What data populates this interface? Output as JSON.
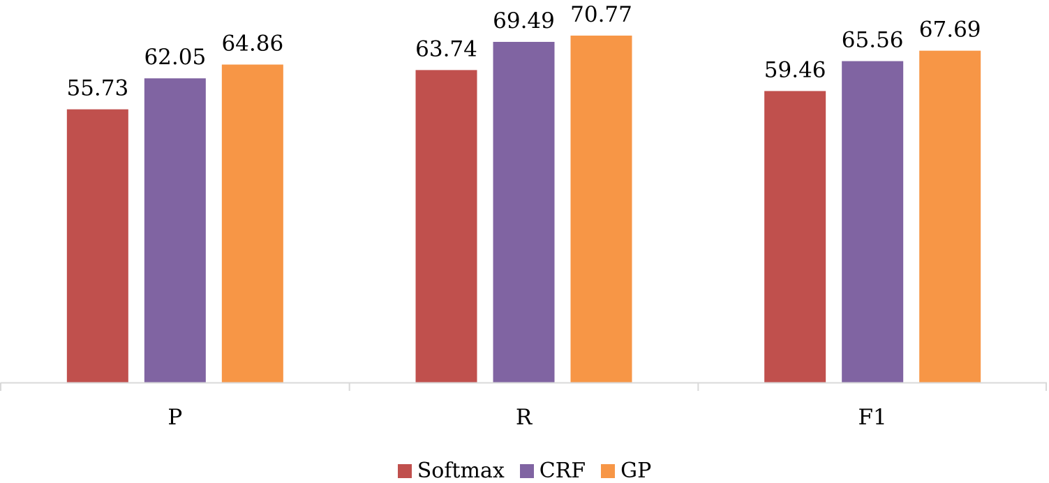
{
  "chart_data": {
    "type": "bar",
    "categories": [
      "P",
      "R",
      "F1"
    ],
    "series": [
      {
        "name": "Softmax",
        "values": [
          55.73,
          63.74,
          59.46
        ],
        "color": "#C0504D"
      },
      {
        "name": "CRF",
        "values": [
          62.05,
          69.49,
          65.56
        ],
        "color": "#8064A2"
      },
      {
        "name": "GP",
        "values": [
          64.86,
          70.77,
          67.69
        ],
        "color": "#F79646"
      }
    ],
    "title": "",
    "xlabel": "",
    "ylabel": "",
    "ylim": [
      0,
      70.77
    ],
    "grid": false,
    "legend": "bottom",
    "axis_color": "#D9D9D9"
  }
}
